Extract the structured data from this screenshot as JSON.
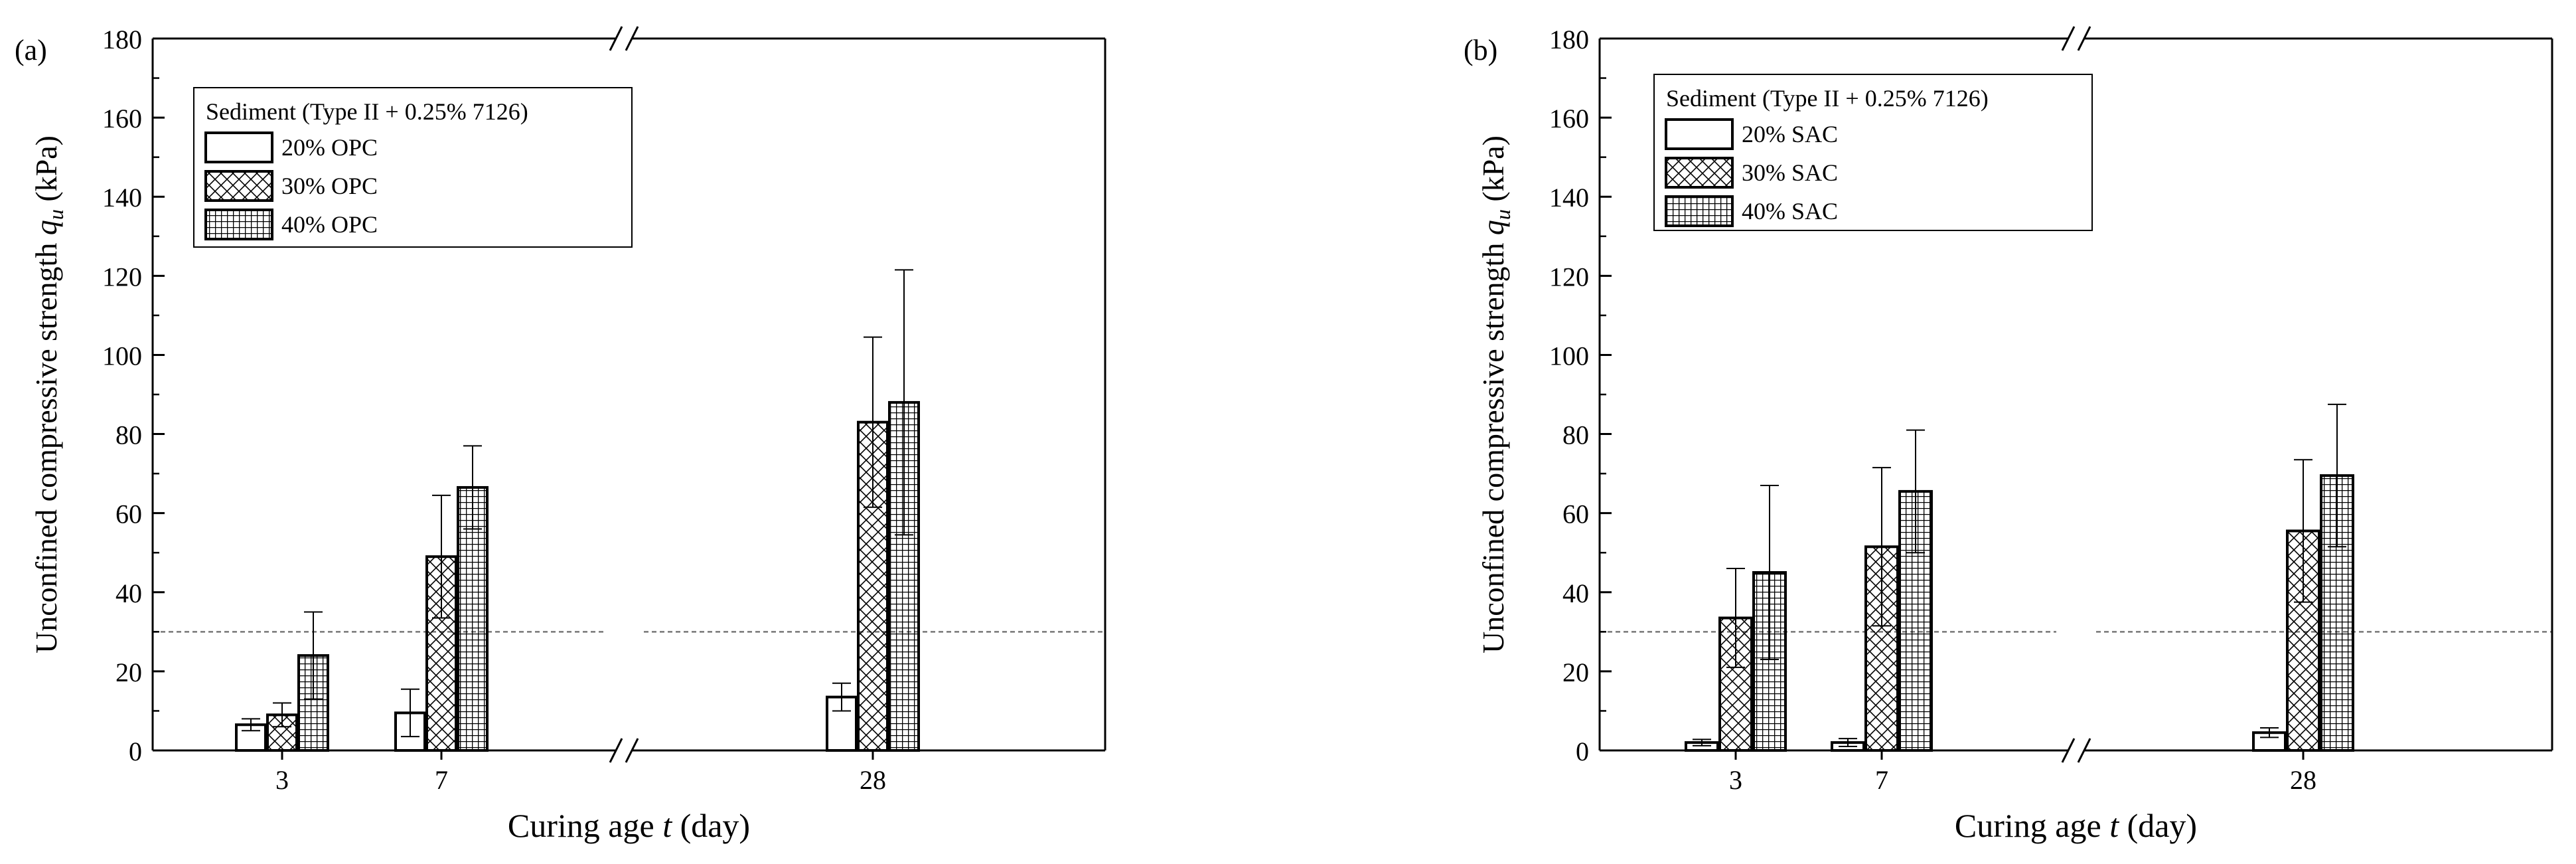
{
  "chart_data": [
    {
      "type": "bar",
      "panel_label": "(a)",
      "xlabel": "Curing age t (day)",
      "ylabel": "Unconfined compressive strength q_u (kPa)",
      "ylim": [
        0,
        180
      ],
      "yticks": [
        0,
        20,
        40,
        60,
        80,
        100,
        120,
        140,
        160,
        180
      ],
      "categories": [
        "3",
        "7",
        "28"
      ],
      "axis_break": "x-axis between 7 and 28",
      "reference_line": 30,
      "legend_title": "Sediment (Type II + 0.25% 7126)",
      "legend_position": "top-left",
      "series": [
        {
          "name": "20% OPC",
          "pattern": "none",
          "values": [
            6.5,
            9.5,
            13.5
          ],
          "errors": [
            1.5,
            6.0,
            3.5
          ]
        },
        {
          "name": "30% OPC",
          "pattern": "cross",
          "values": [
            9.0,
            49.0,
            83.0
          ],
          "errors": [
            3.0,
            15.5,
            21.5
          ]
        },
        {
          "name": "40% OPC",
          "pattern": "grid",
          "values": [
            24.0,
            66.5,
            88.0
          ],
          "errors": [
            11.0,
            10.5,
            33.5
          ]
        }
      ]
    },
    {
      "type": "bar",
      "panel_label": "(b)",
      "xlabel": "Curing age t (day)",
      "ylabel": "Unconfined compressive strength q_u (kPa)",
      "ylim": [
        0,
        180
      ],
      "yticks": [
        0,
        20,
        40,
        60,
        80,
        100,
        120,
        140,
        160,
        180
      ],
      "categories": [
        "3",
        "7",
        "28"
      ],
      "axis_break": "x-axis between 7 and 28",
      "reference_line": 30,
      "legend_title": "Sediment (Type II  + 0.25% 7126)",
      "legend_position": "top-left",
      "series": [
        {
          "name": "20% SAC",
          "pattern": "none",
          "values": [
            2.0,
            2.0,
            4.5
          ],
          "errors": [
            0.8,
            1.0,
            1.2
          ]
        },
        {
          "name": "30% SAC",
          "pattern": "cross",
          "values": [
            33.5,
            51.5,
            55.5
          ],
          "errors": [
            12.5,
            20.0,
            18.0
          ]
        },
        {
          "name": "40% SAC",
          "pattern": "grid",
          "values": [
            45.0,
            65.5,
            69.5
          ],
          "errors": [
            22.0,
            15.5,
            18.0
          ]
        }
      ]
    }
  ]
}
